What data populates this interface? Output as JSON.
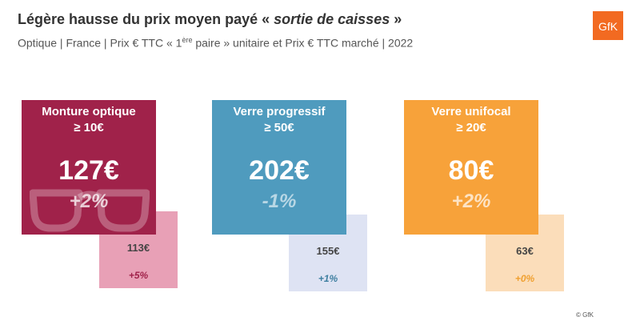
{
  "header": {
    "title_main": "Légère hausse du prix moyen payé « ",
    "title_emph": "sortie de caisses",
    "title_end": " »",
    "subtitle_part1": "Optique | France | Prix € TTC « 1",
    "subtitle_sup": "ère",
    "subtitle_part2": " paire » unitaire et Prix € TTC marché  | 2022",
    "logo_text": "GfK",
    "copyright": "© GfK"
  },
  "colors": {
    "monture": "#A0224A",
    "monture_light": "#E8A0B6",
    "monture_change_small": "#A0224A",
    "progressif": "#4F9BBE",
    "progressif_light": "#DEE3F3",
    "progressif_change_small": "#3E7FA0",
    "unifocal": "#F7A23A",
    "unifocal_light": "#FBDDBA",
    "unifocal_change_small": "#F0A030",
    "logo": "#F26A21"
  },
  "chart_data": {
    "type": "table",
    "categories": [
      {
        "name": "Monture optique",
        "threshold": "≥ 10€",
        "sortie_caisse": "127€",
        "sortie_caisse_value": 127,
        "change_sortie": "+2%",
        "marche": "113€",
        "marche_value": 113,
        "change_marche": "+5%"
      },
      {
        "name": "Verre progressif",
        "threshold": "≥ 50€",
        "sortie_caisse": "202€",
        "sortie_caisse_value": 202,
        "change_sortie": "-1%",
        "marche": "155€",
        "marche_value": 155,
        "change_marche": "+1%"
      },
      {
        "name": "Verre unifocal",
        "threshold": "≥ 20€",
        "sortie_caisse": "80€",
        "sortie_caisse_value": 80,
        "change_sortie": "+2%",
        "marche": "63€",
        "marche_value": 63,
        "change_marche": "+0%"
      }
    ]
  }
}
